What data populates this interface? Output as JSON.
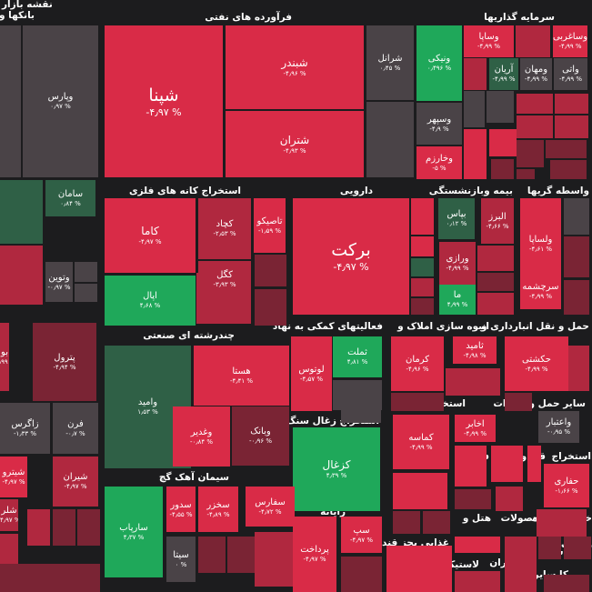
{
  "title": "نقشه بازار",
  "colors": {
    "background": "#1c1c1e",
    "negative_strong": "#d92b47",
    "negative_mid": "#b0283f",
    "negative_dark": "#7a2434",
    "neutral": "#4a4347",
    "positive_dark": "#2f6046",
    "positive_strong": "#1fa85a"
  },
  "sectors": [
    "بانکها و",
    "فرآورده های نفتی",
    "سرمایه گذاریها",
    "استخراج کانه های فلزی",
    "دارویی",
    "بیمه و",
    "واسطه گریها",
    "بازنشستگی",
    "چندرشته ای صنعتی",
    "فعالیتهای کمکی به نهاد",
    "انبوه سازی املاک و",
    "حمل و نقل انبارداری و",
    "استخراج زغال سنگ",
    "استخراج سایر",
    "مخابرات",
    "سایر حمل و",
    "سیمان آهک گچ",
    "عرضه",
    "فنی و",
    "قند و شکر",
    "استخراج",
    "رایانه",
    "هتل و",
    "محصولات",
    "خرده دستگاه",
    "زراعت",
    "ماشین",
    "غذایی بجز قند",
    "لاستیک و",
    "بیمانکاران",
    "کا سایر"
  ],
  "tiles": [
    {
      "name": "وپارس",
      "pct": "۰٫۹۷ %"
    },
    {
      "name": "شپنا",
      "pct": "-۴٫۹۷ %"
    },
    {
      "name": "شبندر",
      "pct": "-۴٫۹۶ %"
    },
    {
      "name": "شتران",
      "pct": "-۴٫۹۳ %"
    },
    {
      "name": "شرانل",
      "pct": "۰٫۴۵ %"
    },
    {
      "name": "ونیکی",
      "pct": "۰٫۴۹۶ %"
    },
    {
      "name": "وساپا",
      "pct": "-۴٫۹۹ %"
    },
    {
      "name": "وساغربی",
      "pct": "-۴٫۹۹ %"
    },
    {
      "name": "آریان",
      "pct": "-۴٫۹۹ %"
    },
    {
      "name": "ومهان",
      "pct": "-۴٫۹۹ %"
    },
    {
      "name": "واتی",
      "pct": "-۴٫۹۹ %"
    },
    {
      "name": "وسپهر",
      "pct": "-۴٫۹ %"
    },
    {
      "name": "وخارزم",
      "pct": "-۵ %"
    },
    {
      "name": "سامان",
      "pct": "۰٫۸۴ %"
    },
    {
      "name": "وتوین",
      "pct": "-۰٫۹۷ %"
    },
    {
      "name": "کاما",
      "pct": "-۴٫۹۷ %"
    },
    {
      "name": "کچاد",
      "pct": "-۲٫۵۳ %"
    },
    {
      "name": "تاصیکو",
      "pct": "-۱٫۵۹ %"
    },
    {
      "name": "کگل",
      "pct": "-۳٫۹۳ %"
    },
    {
      "name": "اپال",
      "pct": "۴٫۶۸ %"
    },
    {
      "name": "برکت",
      "pct": "-۴٫۹۷ %"
    },
    {
      "name": "بپاس",
      "pct": "۰٫۱۲ %"
    },
    {
      "name": "البرز",
      "pct": "-۴٫۶۶ %"
    },
    {
      "name": "ورازی",
      "pct": "-۴٫۹۹ %"
    },
    {
      "name": "ما",
      "pct": "۴٫۹۹ %"
    },
    {
      "name": "ولساپا",
      "pct": "-۴٫۶۱ %"
    },
    {
      "name": "سرچشمه",
      "pct": "-۴٫۹۹ %"
    },
    {
      "name": "بو",
      "pct": "-۴٫۹۹ %"
    },
    {
      "name": "پترول",
      "pct": "-۴٫۹۴ %"
    },
    {
      "name": "زاگرس",
      "pct": "-۱٫۳۳ %"
    },
    {
      "name": "فرن",
      "pct": "-۰٫۷ %"
    },
    {
      "name": "شیترو",
      "pct": "-۴٫۹۷ %"
    },
    {
      "name": "شیران",
      "pct": "-۴٫۹۷ %"
    },
    {
      "name": "شلر",
      "pct": "-۴٫۹۷ %"
    },
    {
      "name": "وامید",
      "pct": "۱٫۵۳ %"
    },
    {
      "name": "هستا",
      "pct": "-۴٫۴۱ %"
    },
    {
      "name": "وبانک",
      "pct": "-۰٫۹۶ %"
    },
    {
      "name": "وغدیر",
      "pct": "-۰٫۸۴ %"
    },
    {
      "name": "لوتوس",
      "pct": "-۴٫۵۷ %"
    },
    {
      "name": "ثملت",
      "pct": "۴٫۸۱ %"
    },
    {
      "name": "کرمان",
      "pct": "-۴٫۹۶ %"
    },
    {
      "name": "ثامید",
      "pct": "-۴٫۹۸ %"
    },
    {
      "name": "حکشتی",
      "pct": "-۴٫۹۹ %"
    },
    {
      "name": "کماسه",
      "pct": "-۴٫۹۹ %"
    },
    {
      "name": "اخابر",
      "pct": "-۴٫۹۹ %"
    },
    {
      "name": "واعتبار",
      "pct": "-۰٫۹۵ %"
    },
    {
      "name": "حفاری",
      "pct": "-۱٫۶۶ %"
    },
    {
      "name": "کزغال",
      "pct": "۴٫۳۹ %"
    },
    {
      "name": "سارپاب",
      "pct": "۴٫۳۷ %"
    },
    {
      "name": "سدور",
      "pct": "-۴٫۵۵ %"
    },
    {
      "name": "سخزر",
      "pct": "-۴٫۸۹ %"
    },
    {
      "name": "سفارس",
      "pct": "-۴٫۷۲ %"
    },
    {
      "name": "سیتا",
      "pct": "۰ %"
    },
    {
      "name": "پرداخت",
      "pct": "-۴٫۹۷ %"
    },
    {
      "name": "سپ",
      "pct": "-۴٫۹۷ %"
    }
  ]
}
